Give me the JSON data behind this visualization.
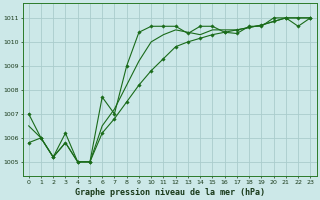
{
  "xlabel": "Graphe pression niveau de la mer (hPa)",
  "bg_color": "#cce8e8",
  "grid_color": "#aacccc",
  "line_color": "#1a6b1a",
  "marker_color": "#1a6b1a",
  "ylim": [
    1004.4,
    1011.6
  ],
  "xlim": [
    -0.5,
    23.5
  ],
  "yticks": [
    1005,
    1006,
    1007,
    1008,
    1009,
    1010,
    1011
  ],
  "xticks": [
    0,
    1,
    2,
    3,
    4,
    5,
    6,
    7,
    8,
    9,
    10,
    11,
    12,
    13,
    14,
    15,
    16,
    17,
    18,
    19,
    20,
    21,
    22,
    23
  ],
  "series1_x": [
    0,
    1,
    2,
    3,
    4,
    5,
    6,
    7,
    8,
    9,
    10,
    11,
    12,
    13,
    14,
    15,
    16,
    17,
    18,
    19,
    20,
    21,
    22,
    23
  ],
  "series1_y": [
    1007.0,
    1006.0,
    1005.2,
    1006.2,
    1005.0,
    1005.0,
    1007.7,
    1007.0,
    1009.0,
    1010.4,
    1010.65,
    1010.65,
    1010.65,
    1010.35,
    1010.65,
    1010.65,
    1010.4,
    1010.35,
    1010.65,
    1010.65,
    1011.0,
    1011.0,
    1010.65,
    1011.0
  ],
  "series2_x": [
    0,
    1,
    2,
    3,
    4,
    5,
    6,
    7,
    8,
    9,
    10,
    11,
    12,
    13,
    14,
    15,
    16,
    17,
    18,
    19,
    20,
    21,
    22,
    23
  ],
  "series2_y": [
    1005.8,
    1006.0,
    1005.2,
    1005.8,
    1005.0,
    1005.0,
    1006.2,
    1006.8,
    1007.5,
    1008.2,
    1008.8,
    1009.3,
    1009.8,
    1010.0,
    1010.15,
    1010.3,
    1010.4,
    1010.5,
    1010.6,
    1010.7,
    1010.85,
    1011.0,
    1011.0,
    1011.0
  ],
  "series3_x": [
    0,
    1,
    2,
    3,
    4,
    5,
    6,
    7,
    8,
    9,
    10,
    11,
    12,
    13,
    14,
    15,
    16,
    17,
    18,
    19,
    20,
    21,
    22,
    23
  ],
  "series3_y": [
    1006.5,
    1006.0,
    1005.2,
    1005.8,
    1005.0,
    1005.0,
    1006.5,
    1007.2,
    1008.2,
    1009.2,
    1010.0,
    1010.3,
    1010.5,
    1010.4,
    1010.3,
    1010.5,
    1010.5,
    1010.5,
    1010.6,
    1010.7,
    1010.85,
    1011.0,
    1011.0,
    1011.0
  ],
  "tick_fontsize": 4.5,
  "xlabel_fontsize": 6.0
}
